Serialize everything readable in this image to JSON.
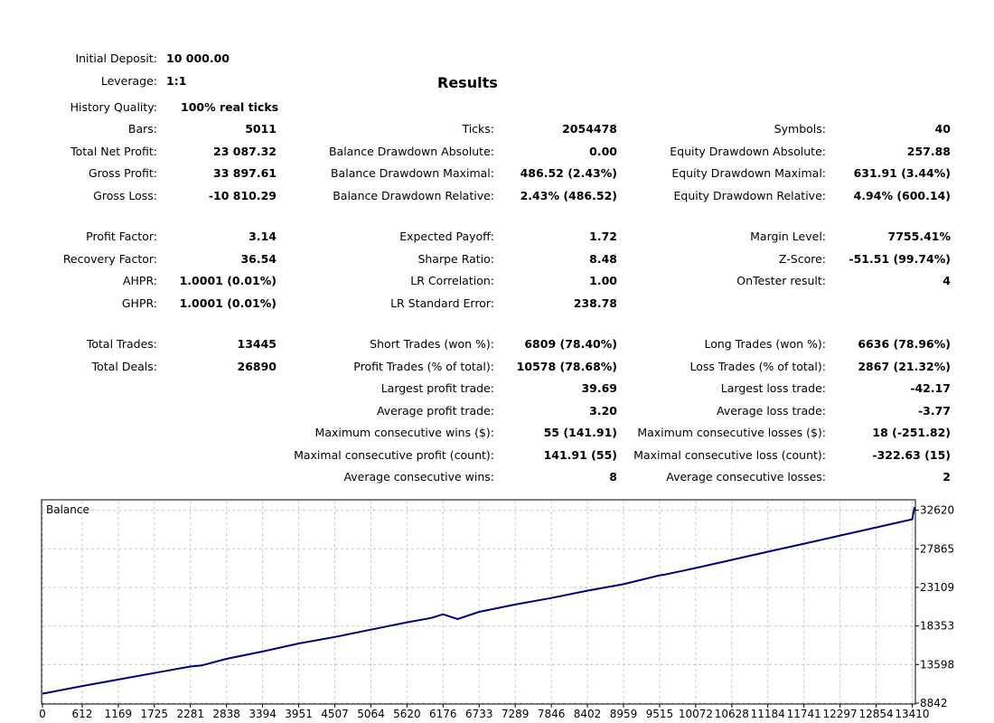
{
  "results_title": "Results",
  "header": {
    "initial_deposit_label": "Initial Deposit:",
    "initial_deposit_value": "10 000.00",
    "leverage_label": "Leverage:",
    "leverage_value": "1:1",
    "history_quality_label": "History Quality:",
    "history_quality_value": "100% real ticks"
  },
  "stats": {
    "col1": [
      {
        "label": "Bars:",
        "value": "5011"
      },
      {
        "label": "Total Net Profit:",
        "value": "23 087.32"
      },
      {
        "label": "Gross Profit:",
        "value": "33 897.61"
      },
      {
        "label": "Gross Loss:",
        "value": "-10 810.29"
      },
      {
        "label": "Profit Factor:",
        "value": "3.14"
      },
      {
        "label": "Recovery Factor:",
        "value": "36.54"
      },
      {
        "label": "AHPR:",
        "value": "1.0001 (0.01%)"
      },
      {
        "label": "GHPR:",
        "value": "1.0001 (0.01%)"
      },
      {
        "label": "Total Trades:",
        "value": "13445"
      },
      {
        "label": "Total Deals:",
        "value": "26890"
      }
    ],
    "col2": [
      {
        "label": "Ticks:",
        "value": "2054478"
      },
      {
        "label": "Balance Drawdown Absolute:",
        "value": "0.00"
      },
      {
        "label": "Balance Drawdown Maximal:",
        "value": "486.52 (2.43%)"
      },
      {
        "label": "Balance Drawdown Relative:",
        "value": "2.43% (486.52)"
      },
      {
        "label": "Expected Payoff:",
        "value": "1.72"
      },
      {
        "label": "Sharpe Ratio:",
        "value": "8.48"
      },
      {
        "label": "LR Correlation:",
        "value": "1.00"
      },
      {
        "label": "LR Standard Error:",
        "value": "238.78"
      },
      {
        "label": "Short Trades (won %):",
        "value": "6809 (78.40%)"
      },
      {
        "label": "Profit Trades (% of total):",
        "value": "10578 (78.68%)"
      },
      {
        "label": "Largest profit trade:",
        "value": "39.69"
      },
      {
        "label": "Average profit trade:",
        "value": "3.20"
      },
      {
        "label": "Maximum consecutive wins ($):",
        "value": "55 (141.91)"
      },
      {
        "label": "Maximal consecutive profit (count):",
        "value": "141.91 (55)"
      },
      {
        "label": "Average consecutive wins:",
        "value": "8"
      }
    ],
    "col3": [
      {
        "label": "Symbols:",
        "value": "40"
      },
      {
        "label": "Equity Drawdown Absolute:",
        "value": "257.88"
      },
      {
        "label": "Equity Drawdown Maximal:",
        "value": "631.91 (3.44%)"
      },
      {
        "label": "Equity Drawdown Relative:",
        "value": "4.94% (600.14)"
      },
      {
        "label": "Margin Level:",
        "value": "7755.41%"
      },
      {
        "label": "Z-Score:",
        "value": "-51.51 (99.74%)"
      },
      {
        "label": "OnTester result:",
        "value": "4"
      },
      {
        "label": "Long Trades (won %):",
        "value": "6636 (78.96%)"
      },
      {
        "label": "Loss Trades (% of total):",
        "value": "2867 (21.32%)"
      },
      {
        "label": "Largest loss trade:",
        "value": "-42.17"
      },
      {
        "label": "Average loss trade:",
        "value": "-3.77"
      },
      {
        "label": "Maximum consecutive losses ($):",
        "value": "18 (-251.82)"
      },
      {
        "label": "Maximal consecutive loss (count):",
        "value": "-322.63 (15)"
      },
      {
        "label": "Average consecutive losses:",
        "value": "2"
      }
    ]
  },
  "chart_data": {
    "type": "line",
    "title": "Balance",
    "line_color": "#000080",
    "grid": true,
    "ylim": [
      8842,
      33800
    ],
    "xlim": [
      0,
      13445
    ],
    "y_ticks": [
      32620,
      27865,
      23109,
      18353,
      13598,
      8842
    ],
    "x_ticks": [
      0,
      612,
      1169,
      1725,
      2281,
      2838,
      3394,
      3951,
      4507,
      5064,
      5620,
      6176,
      6733,
      7289,
      7846,
      8402,
      8959,
      9515,
      10072,
      10628,
      11184,
      11741,
      12297,
      12854,
      13410
    ],
    "series": [
      {
        "x": [
          0,
          612,
          1169,
          1725,
          2281,
          2460,
          2838,
          3394,
          3951,
          4507,
          5064,
          5620,
          6000,
          6176,
          6400,
          6733,
          7289,
          7846,
          8402,
          8959,
          9515,
          9600,
          10072,
          10628,
          11184,
          11741,
          12297,
          12854,
          13410,
          13445
        ],
        "y": [
          10000,
          10950,
          11750,
          12550,
          13350,
          13500,
          14300,
          15200,
          16200,
          17000,
          17900,
          18800,
          19350,
          19800,
          19200,
          20100,
          21000,
          21800,
          22700,
          23500,
          24600,
          24700,
          25500,
          26500,
          27500,
          28500,
          29500,
          30500,
          31500,
          33000
        ]
      }
    ]
  }
}
